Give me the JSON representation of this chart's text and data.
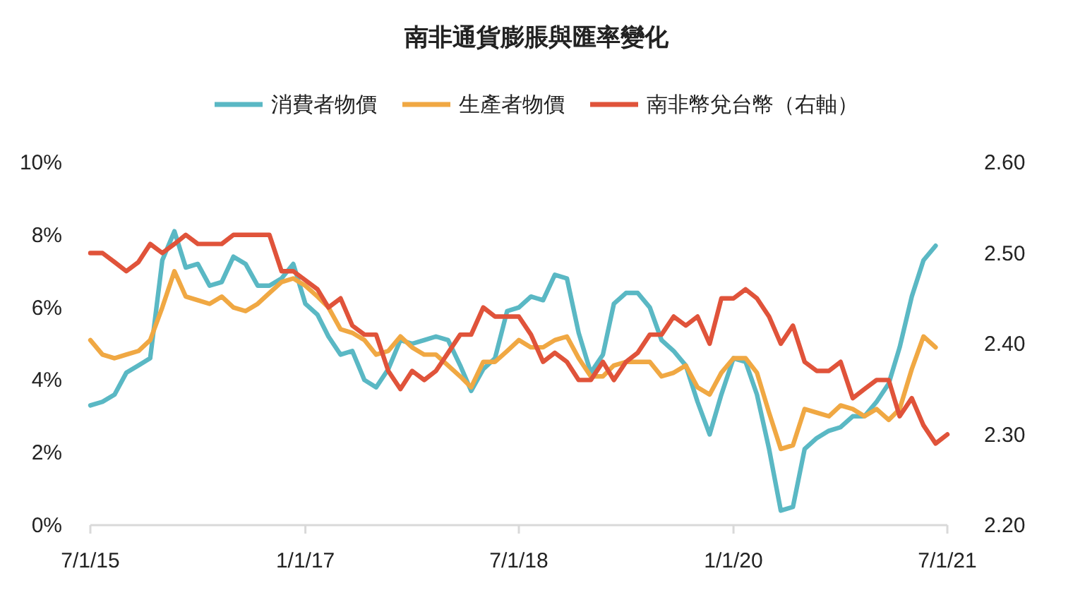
{
  "chart_data": {
    "type": "line",
    "title": "南非通貨膨脹與匯率變化",
    "legend": "top",
    "grid": false,
    "x": [
      "2015-07",
      "2015-08",
      "2015-09",
      "2015-10",
      "2015-11",
      "2015-12",
      "2016-01",
      "2016-02",
      "2016-03",
      "2016-04",
      "2016-05",
      "2016-06",
      "2016-07",
      "2016-08",
      "2016-09",
      "2016-10",
      "2016-11",
      "2016-12",
      "2017-01",
      "2017-02",
      "2017-03",
      "2017-04",
      "2017-05",
      "2017-06",
      "2017-07",
      "2017-08",
      "2017-09",
      "2017-10",
      "2017-11",
      "2017-12",
      "2018-01",
      "2018-02",
      "2018-03",
      "2018-04",
      "2018-05",
      "2018-06",
      "2018-07",
      "2018-08",
      "2018-09",
      "2018-10",
      "2018-11",
      "2018-12",
      "2019-01",
      "2019-02",
      "2019-03",
      "2019-04",
      "2019-05",
      "2019-06",
      "2019-07",
      "2019-08",
      "2019-09",
      "2019-10",
      "2019-11",
      "2019-12",
      "2020-01",
      "2020-02",
      "2020-03",
      "2020-04",
      "2020-05",
      "2020-06",
      "2020-07",
      "2020-08",
      "2020-09",
      "2020-10",
      "2020-11",
      "2020-12",
      "2021-01",
      "2021-02",
      "2021-03",
      "2021-04",
      "2021-05",
      "2021-06",
      "2021-07"
    ],
    "xlim": [
      "2015-07",
      "2021-07"
    ],
    "xticks": [
      {
        "value": "2015-07",
        "label": "7/1/15"
      },
      {
        "value": "2017-01",
        "label": "1/1/17"
      },
      {
        "value": "2018-07",
        "label": "7/1/18"
      },
      {
        "value": "2020-01",
        "label": "1/1/20"
      },
      {
        "value": "2021-07",
        "label": "7/1/21"
      }
    ],
    "ylim": [
      0,
      10
    ],
    "yticks": [
      {
        "value": 0,
        "label": "0%"
      },
      {
        "value": 2,
        "label": "2%"
      },
      {
        "value": 4,
        "label": "4%"
      },
      {
        "value": 6,
        "label": "6%"
      },
      {
        "value": 8,
        "label": "8%"
      },
      {
        "value": 10,
        "label": "10%"
      }
    ],
    "y2lim": [
      2.2,
      2.6
    ],
    "y2ticks": [
      {
        "value": 2.2,
        "label": "2.20"
      },
      {
        "value": 2.3,
        "label": "2.30"
      },
      {
        "value": 2.4,
        "label": "2.40"
      },
      {
        "value": 2.5,
        "label": "2.50"
      },
      {
        "value": 2.6,
        "label": "2.60"
      }
    ],
    "series": [
      {
        "name": "消費者物價",
        "color": "#5ab8c4",
        "values": [
          3.3,
          3.4,
          3.6,
          4.2,
          4.4,
          4.6,
          7.3,
          8.1,
          7.1,
          7.2,
          6.6,
          6.7,
          7.4,
          7.2,
          6.6,
          6.6,
          6.8,
          7.2,
          6.1,
          5.8,
          5.2,
          4.7,
          4.8,
          4.0,
          3.8,
          4.3,
          5.1,
          5.0,
          5.1,
          5.2,
          5.1,
          4.4,
          3.7,
          4.3,
          4.6,
          5.9,
          6.0,
          6.3,
          6.2,
          6.9,
          6.8,
          5.3,
          4.2,
          4.7,
          6.1,
          6.4,
          6.4,
          6.0,
          5.1,
          4.8,
          4.4,
          3.4,
          2.5,
          3.6,
          4.6,
          4.5,
          3.6,
          2.1,
          0.4,
          0.5,
          2.1,
          2.4,
          2.6,
          2.7,
          3.0,
          3.0,
          3.4,
          3.9,
          4.9,
          6.3,
          7.3,
          7.7,
          null
        ]
      },
      {
        "name": "生產者物價",
        "color": "#f0a843",
        "values": [
          5.1,
          4.7,
          4.6,
          4.7,
          4.8,
          5.1,
          6.0,
          7.0,
          6.3,
          6.2,
          6.1,
          6.3,
          6.0,
          5.9,
          6.1,
          6.4,
          6.7,
          6.8,
          6.6,
          6.3,
          6.0,
          5.4,
          5.3,
          5.1,
          4.7,
          4.8,
          5.2,
          4.9,
          4.7,
          4.7,
          4.4,
          4.1,
          3.8,
          4.5,
          4.5,
          4.8,
          5.1,
          4.9,
          4.9,
          5.1,
          5.2,
          4.6,
          4.1,
          4.1,
          4.4,
          4.5,
          4.5,
          4.5,
          4.1,
          4.2,
          4.4,
          3.8,
          3.6,
          4.2,
          4.6,
          4.6,
          4.2,
          3.1,
          2.1,
          2.2,
          3.2,
          3.1,
          3.0,
          3.3,
          3.2,
          3.0,
          3.2,
          2.9,
          3.2,
          4.3,
          5.2,
          4.9,
          null
        ]
      },
      {
        "name": "南非幣兌台幣（右軸）",
        "color": "#e0533a",
        "axis": "y2",
        "values": [
          2.5,
          2.5,
          2.49,
          2.48,
          2.49,
          2.51,
          2.5,
          2.51,
          2.52,
          2.51,
          2.51,
          2.51,
          2.52,
          2.52,
          2.52,
          2.52,
          2.48,
          2.48,
          2.47,
          2.46,
          2.44,
          2.45,
          2.42,
          2.41,
          2.41,
          2.37,
          2.35,
          2.37,
          2.36,
          2.37,
          2.39,
          2.41,
          2.41,
          2.44,
          2.43,
          2.43,
          2.43,
          2.41,
          2.38,
          2.39,
          2.38,
          2.36,
          2.36,
          2.38,
          2.36,
          2.38,
          2.39,
          2.41,
          2.41,
          2.43,
          2.42,
          2.43,
          2.4,
          2.45,
          2.45,
          2.46,
          2.45,
          2.43,
          2.4,
          2.42,
          2.38,
          2.37,
          2.37,
          2.38,
          2.34,
          2.35,
          2.36,
          2.36,
          2.32,
          2.34,
          2.31,
          2.29,
          2.3
        ]
      }
    ]
  }
}
